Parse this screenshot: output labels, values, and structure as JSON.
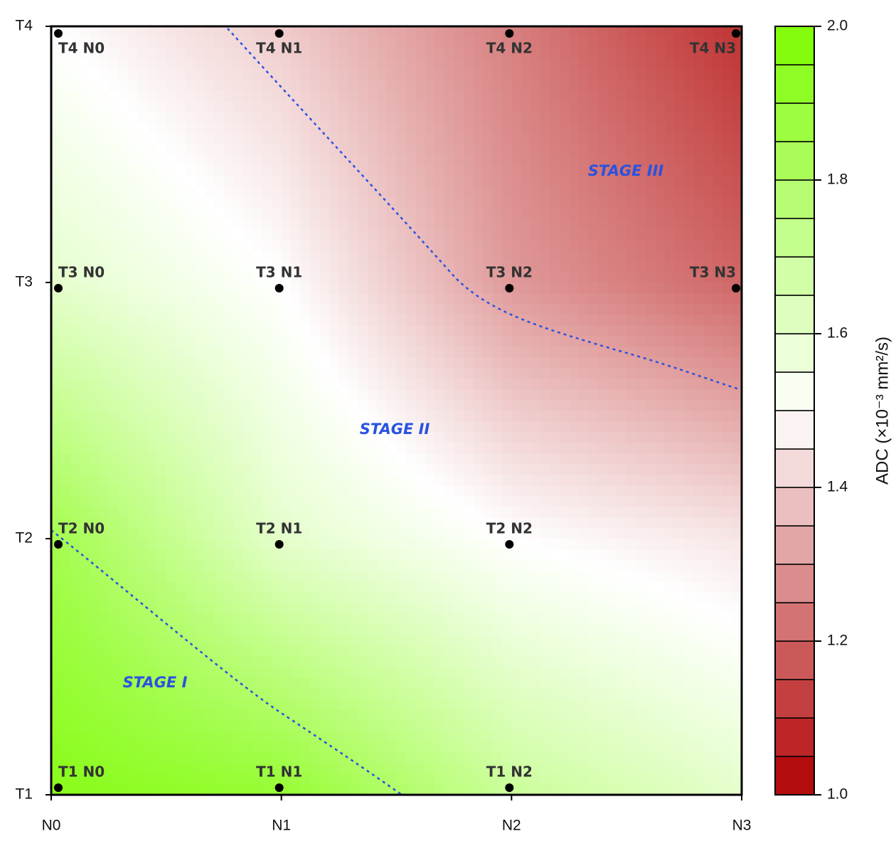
{
  "chart_data": {
    "type": "heatmap",
    "x_categories": [
      "N0",
      "N1",
      "N2",
      "N3"
    ],
    "y_categories": [
      "T1",
      "T2",
      "T3",
      "T4"
    ],
    "z": [
      [
        1.95,
        1.9,
        1.7,
        1.6
      ],
      [
        1.85,
        1.6,
        1.5,
        1.45
      ],
      [
        1.6,
        1.5,
        1.3,
        1.2
      ],
      [
        1.5,
        1.4,
        1.25,
        1.1
      ]
    ],
    "point_labels": [
      [
        "T1 N0",
        "T1 N1",
        "T1 N2",
        null
      ],
      [
        "T2 N0",
        "T2 N1",
        "T2 N2",
        null
      ],
      [
        "T3 N0",
        "T3 N1",
        "T3 N2",
        "T3 N3"
      ],
      [
        "T4 N0",
        "T4 N1",
        "T4 N2",
        "T4 N3"
      ]
    ],
    "annotations": [
      "STAGE I",
      "STAGE II",
      "STAGE III"
    ],
    "colors": [
      "#b00000",
      "#ffffff",
      "#7cfc00"
    ],
    "colorbar": {
      "label": "ADC (×10⁻³ mm²/s)",
      "lim": [
        1.0,
        2.0
      ],
      "steps": 20,
      "ticks": [
        {
          "value": 1.0,
          "label": "1.0"
        },
        1.2,
        1.4,
        1.6,
        1.8,
        {
          "value": 2.0,
          "label": "2.0"
        }
      ]
    }
  }
}
